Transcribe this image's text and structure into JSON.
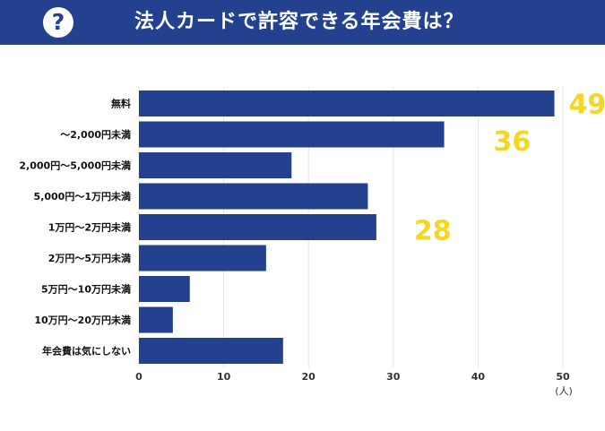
{
  "header": {
    "icon": "question-icon",
    "icon_glyph": "?",
    "title": "法人カードで許容できる年会費は？"
  },
  "chart_data": {
    "type": "bar",
    "orientation": "horizontal",
    "title": "法人カードで許容できる年会費は？",
    "categories": [
      "無料",
      "〜2,000円未満",
      "2,000円〜5,000円未満",
      "5,000円〜1万円未満",
      "1万円〜2万円未満",
      "2万円〜5万円未満",
      "5万円〜10万円未満",
      "10万円〜20万円未満",
      "年会費は気にしない"
    ],
    "values": [
      49,
      36,
      18,
      27,
      28,
      15,
      6,
      4,
      17
    ],
    "xlim": [
      0,
      50
    ],
    "ticks": [
      0,
      10,
      20,
      30,
      40,
      50
    ],
    "unit": "(人)",
    "bar_color": "#23418f",
    "annotation_color": "#f5d620",
    "annotations": [
      {
        "category_index": 0,
        "text": "49"
      },
      {
        "category_index": 1,
        "text": "36"
      },
      {
        "category_index": 4,
        "text": "28"
      }
    ],
    "grid": true
  }
}
